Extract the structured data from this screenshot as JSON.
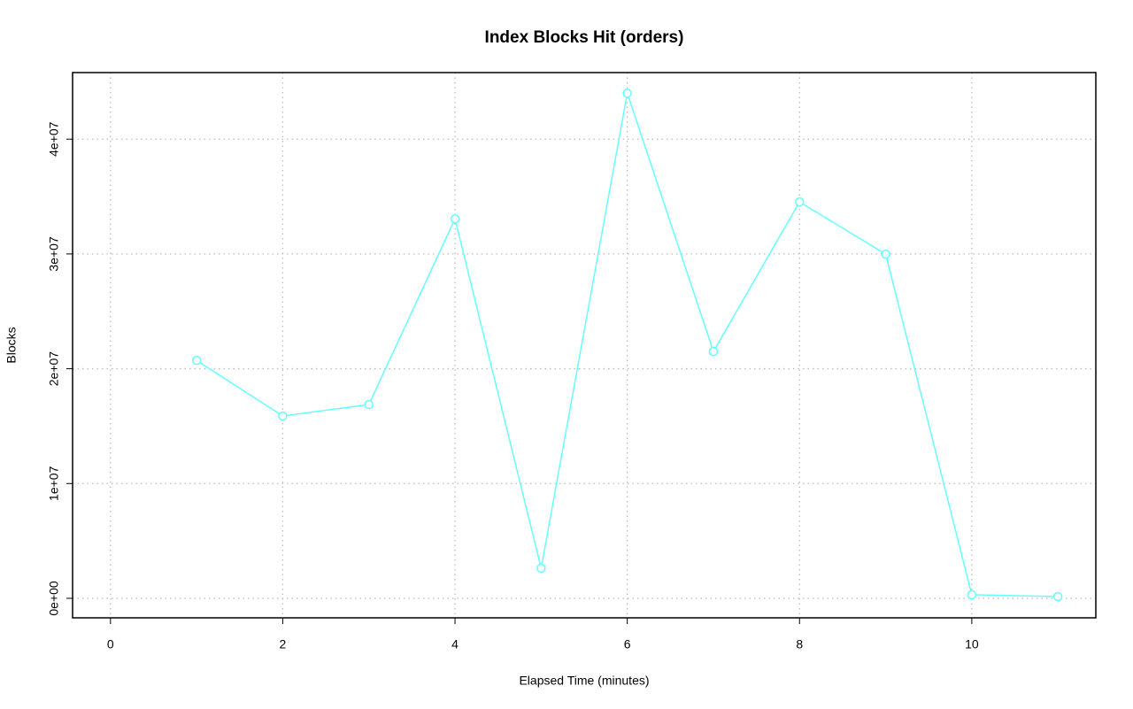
{
  "chart_data": {
    "type": "line",
    "title": "Index Blocks Hit (orders)",
    "x_label": "Elapsed Time (minutes)",
    "y_label": "Blocks",
    "x": [
      1,
      2,
      3,
      4,
      5,
      6,
      7,
      8,
      9,
      10,
      11
    ],
    "values": [
      20730000,
      15880000,
      16880000,
      33060000,
      2620000,
      44000000,
      21500000,
      34530000,
      29980000,
      310000,
      150000
    ],
    "color": "#66ffff",
    "xlim": [
      -0.44,
      11.44
    ],
    "xticks": [
      0,
      2,
      4,
      6,
      8,
      10
    ],
    "ylim": [
      -1700000,
      45800000
    ],
    "yticks": [
      {
        "value": 0,
        "label": "0e+00"
      },
      {
        "value": 10000000,
        "label": "1e+07"
      },
      {
        "value": 20000000,
        "label": "2e+07"
      },
      {
        "value": 30000000,
        "label": "3e+07"
      },
      {
        "value": 40000000,
        "label": "4e+07"
      }
    ],
    "grid": true
  }
}
